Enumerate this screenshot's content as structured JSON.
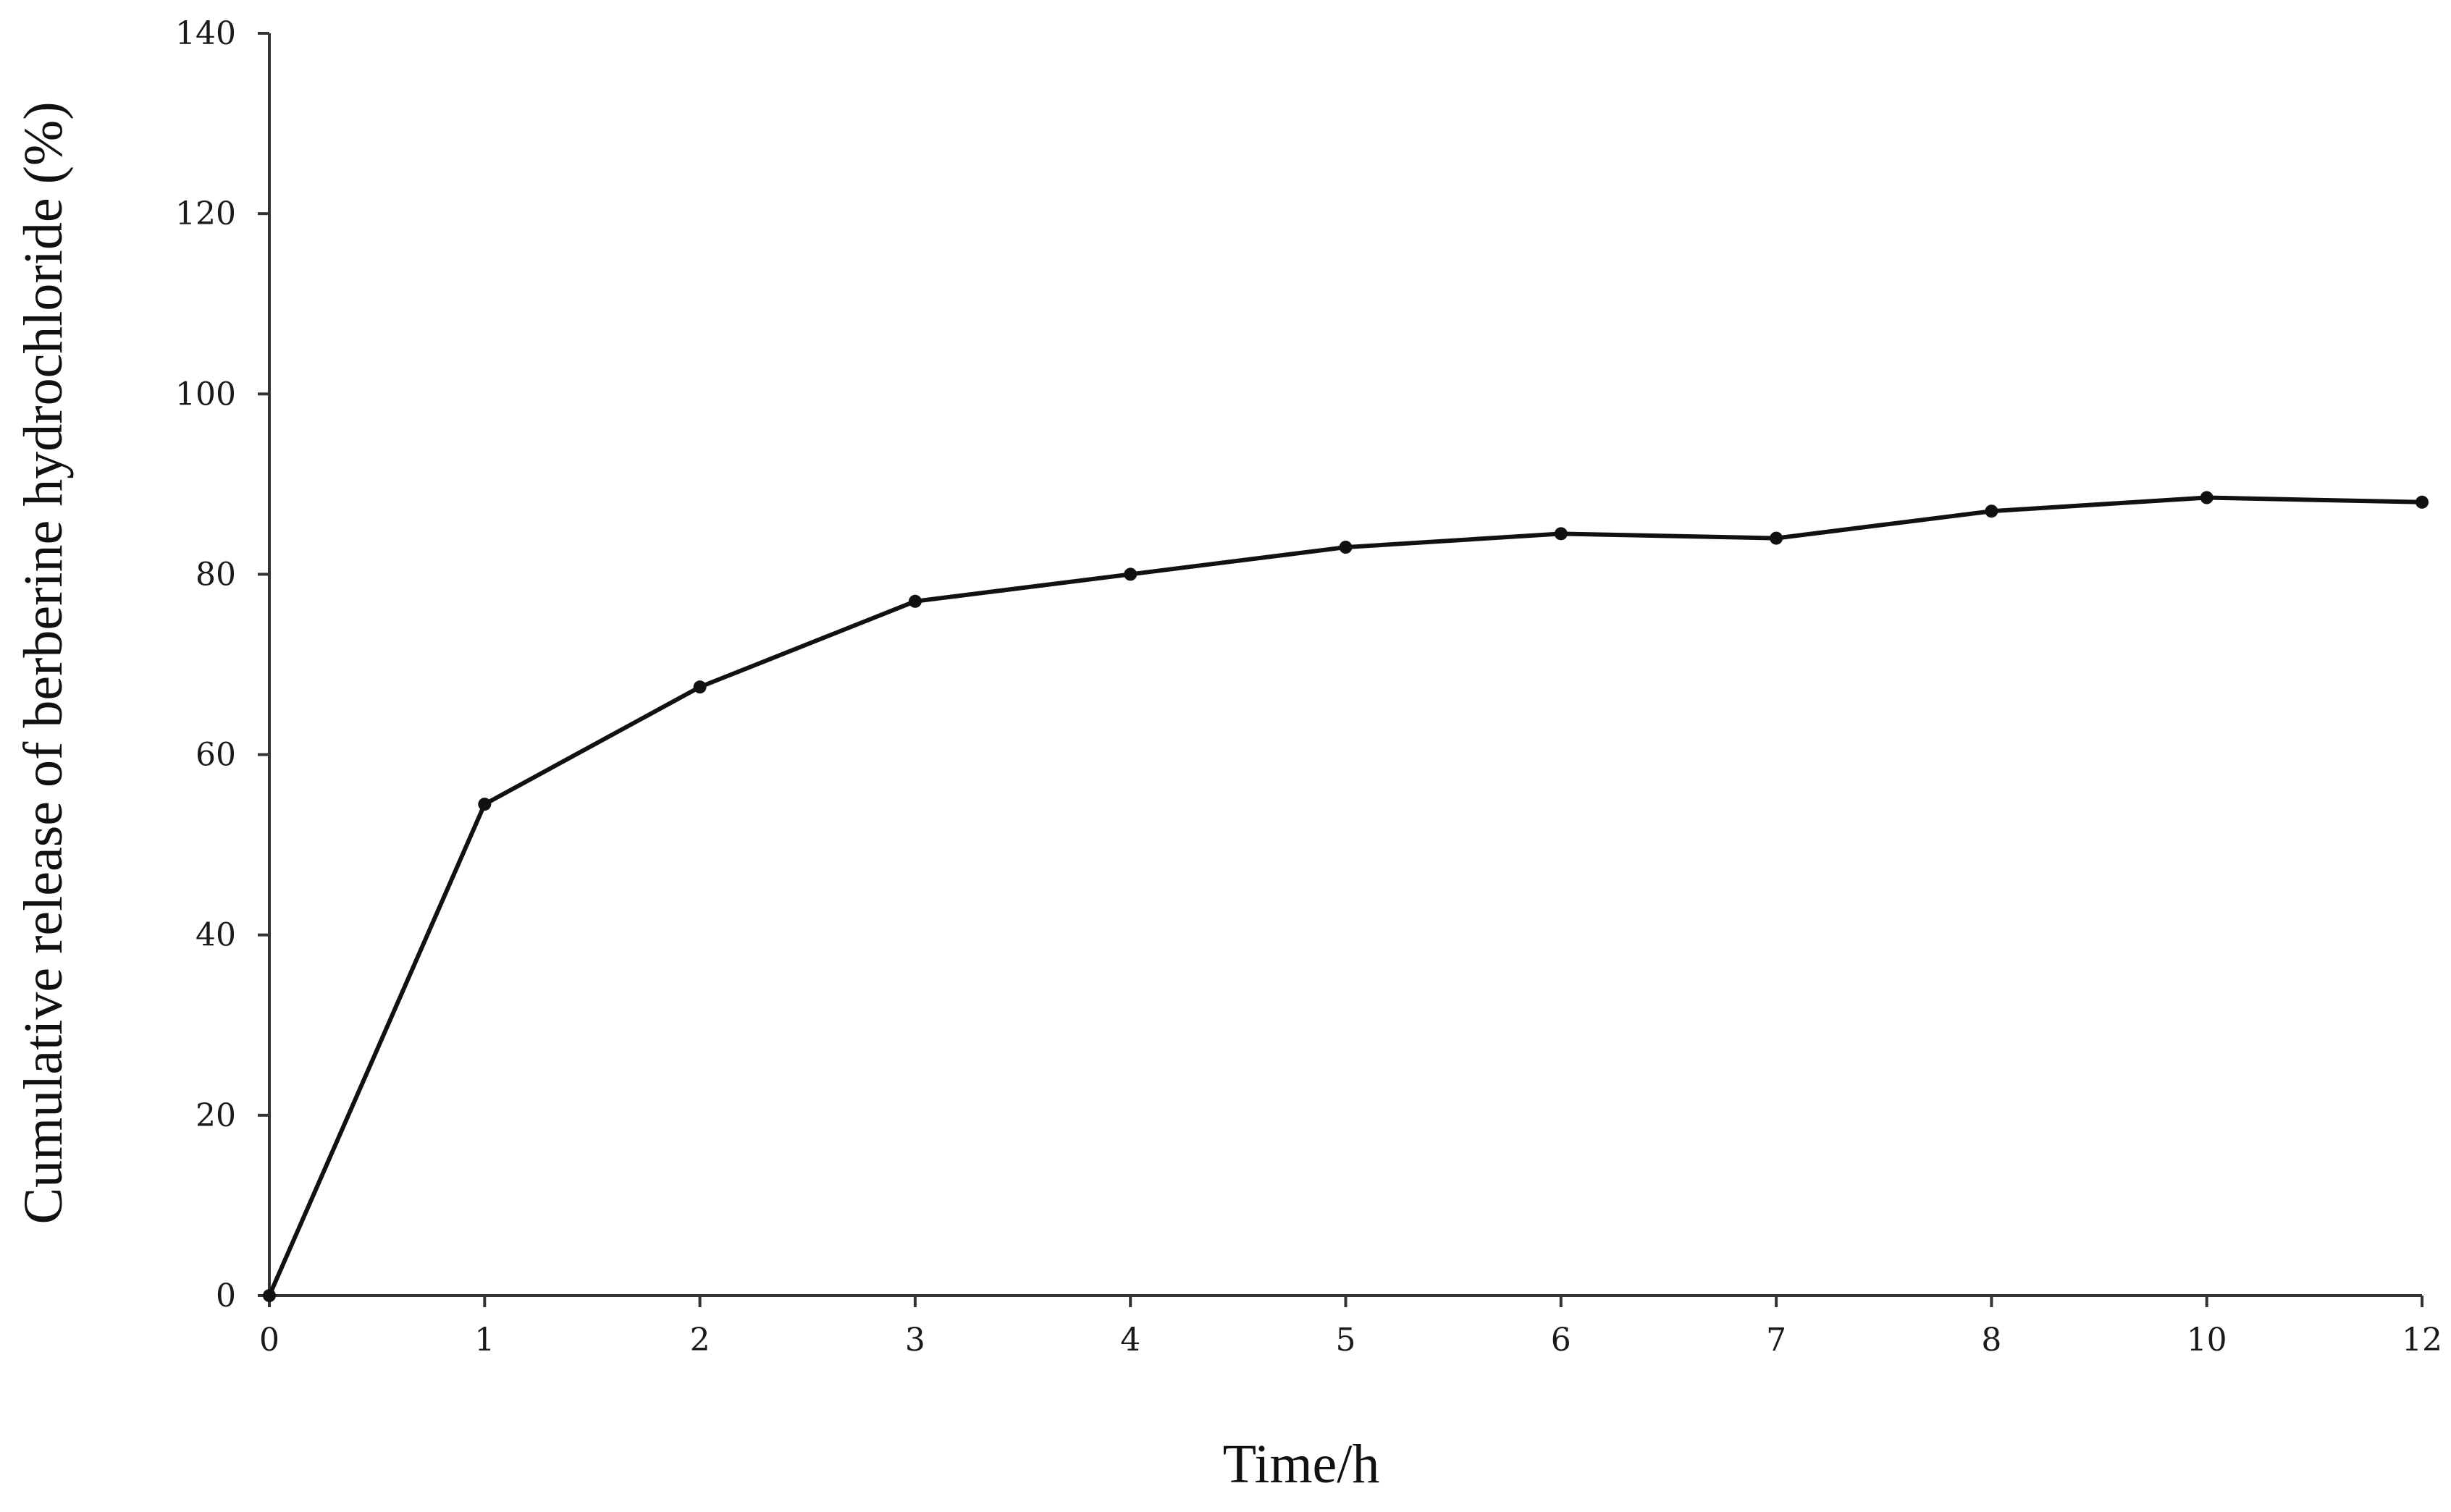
{
  "chart_data": {
    "type": "line",
    "title": "",
    "xlabel": "Time/h",
    "ylabel": "Cumulative release of berberine hydrochloride (%)",
    "x": [
      "0",
      "1",
      "2",
      "3",
      "4",
      "5",
      "6",
      "7",
      "8",
      "10",
      "12"
    ],
    "series": [
      {
        "name": "",
        "values": [
          0,
          54.5,
          67.5,
          77,
          80,
          83,
          84.5,
          84,
          87,
          88.5,
          88
        ]
      }
    ],
    "ylim": [
      0,
      140
    ],
    "yticks": [
      0,
      20,
      40,
      60,
      80,
      100,
      120,
      140
    ],
    "grid": false,
    "legend": "none",
    "colors": {
      "line": "#111111",
      "axis": "#333333",
      "text": "#1a1a1a"
    }
  }
}
